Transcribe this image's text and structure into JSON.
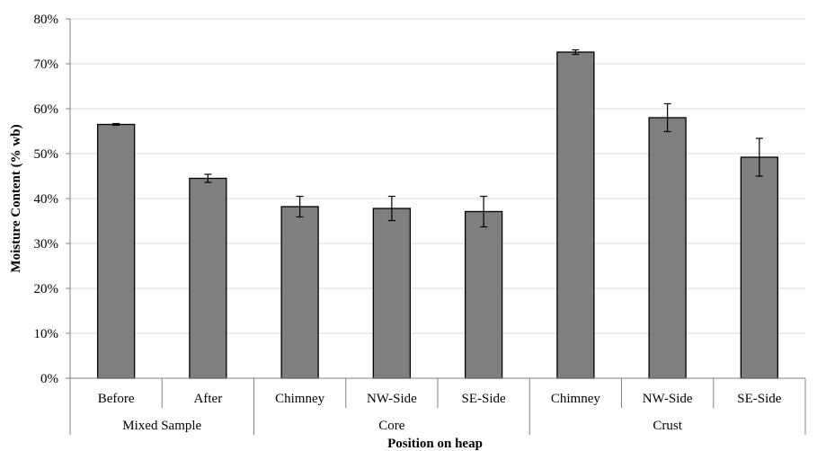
{
  "chart_data": {
    "type": "bar",
    "title": "",
    "xlabel": "Position on heap",
    "ylabel": "Moisture Content (% wb)",
    "ylim": [
      0,
      0.8
    ],
    "y_ticks": [
      0,
      0.1,
      0.2,
      0.3,
      0.4,
      0.5,
      0.6,
      0.7,
      0.8
    ],
    "y_tick_labels": [
      "0%",
      "10%",
      "20%",
      "30%",
      "40%",
      "50%",
      "60%",
      "70%",
      "80%"
    ],
    "grid": "horizontal",
    "legend": "none",
    "bar_color": "#7f7f7f",
    "categories": [
      "Before",
      "After",
      "Chimney",
      "NW-Side",
      "SE-Side",
      "Chimney",
      "NW-Side",
      "SE-Side"
    ],
    "groups": [
      {
        "label": "Mixed Sample",
        "count": 2
      },
      {
        "label": "Core",
        "count": 3
      },
      {
        "label": "Crust",
        "count": 3
      }
    ],
    "values": [
      0.565,
      0.445,
      0.382,
      0.378,
      0.371,
      0.726,
      0.58,
      0.492
    ],
    "errors": [
      0.002,
      0.009,
      0.023,
      0.027,
      0.034,
      0.005,
      0.031,
      0.042
    ]
  }
}
